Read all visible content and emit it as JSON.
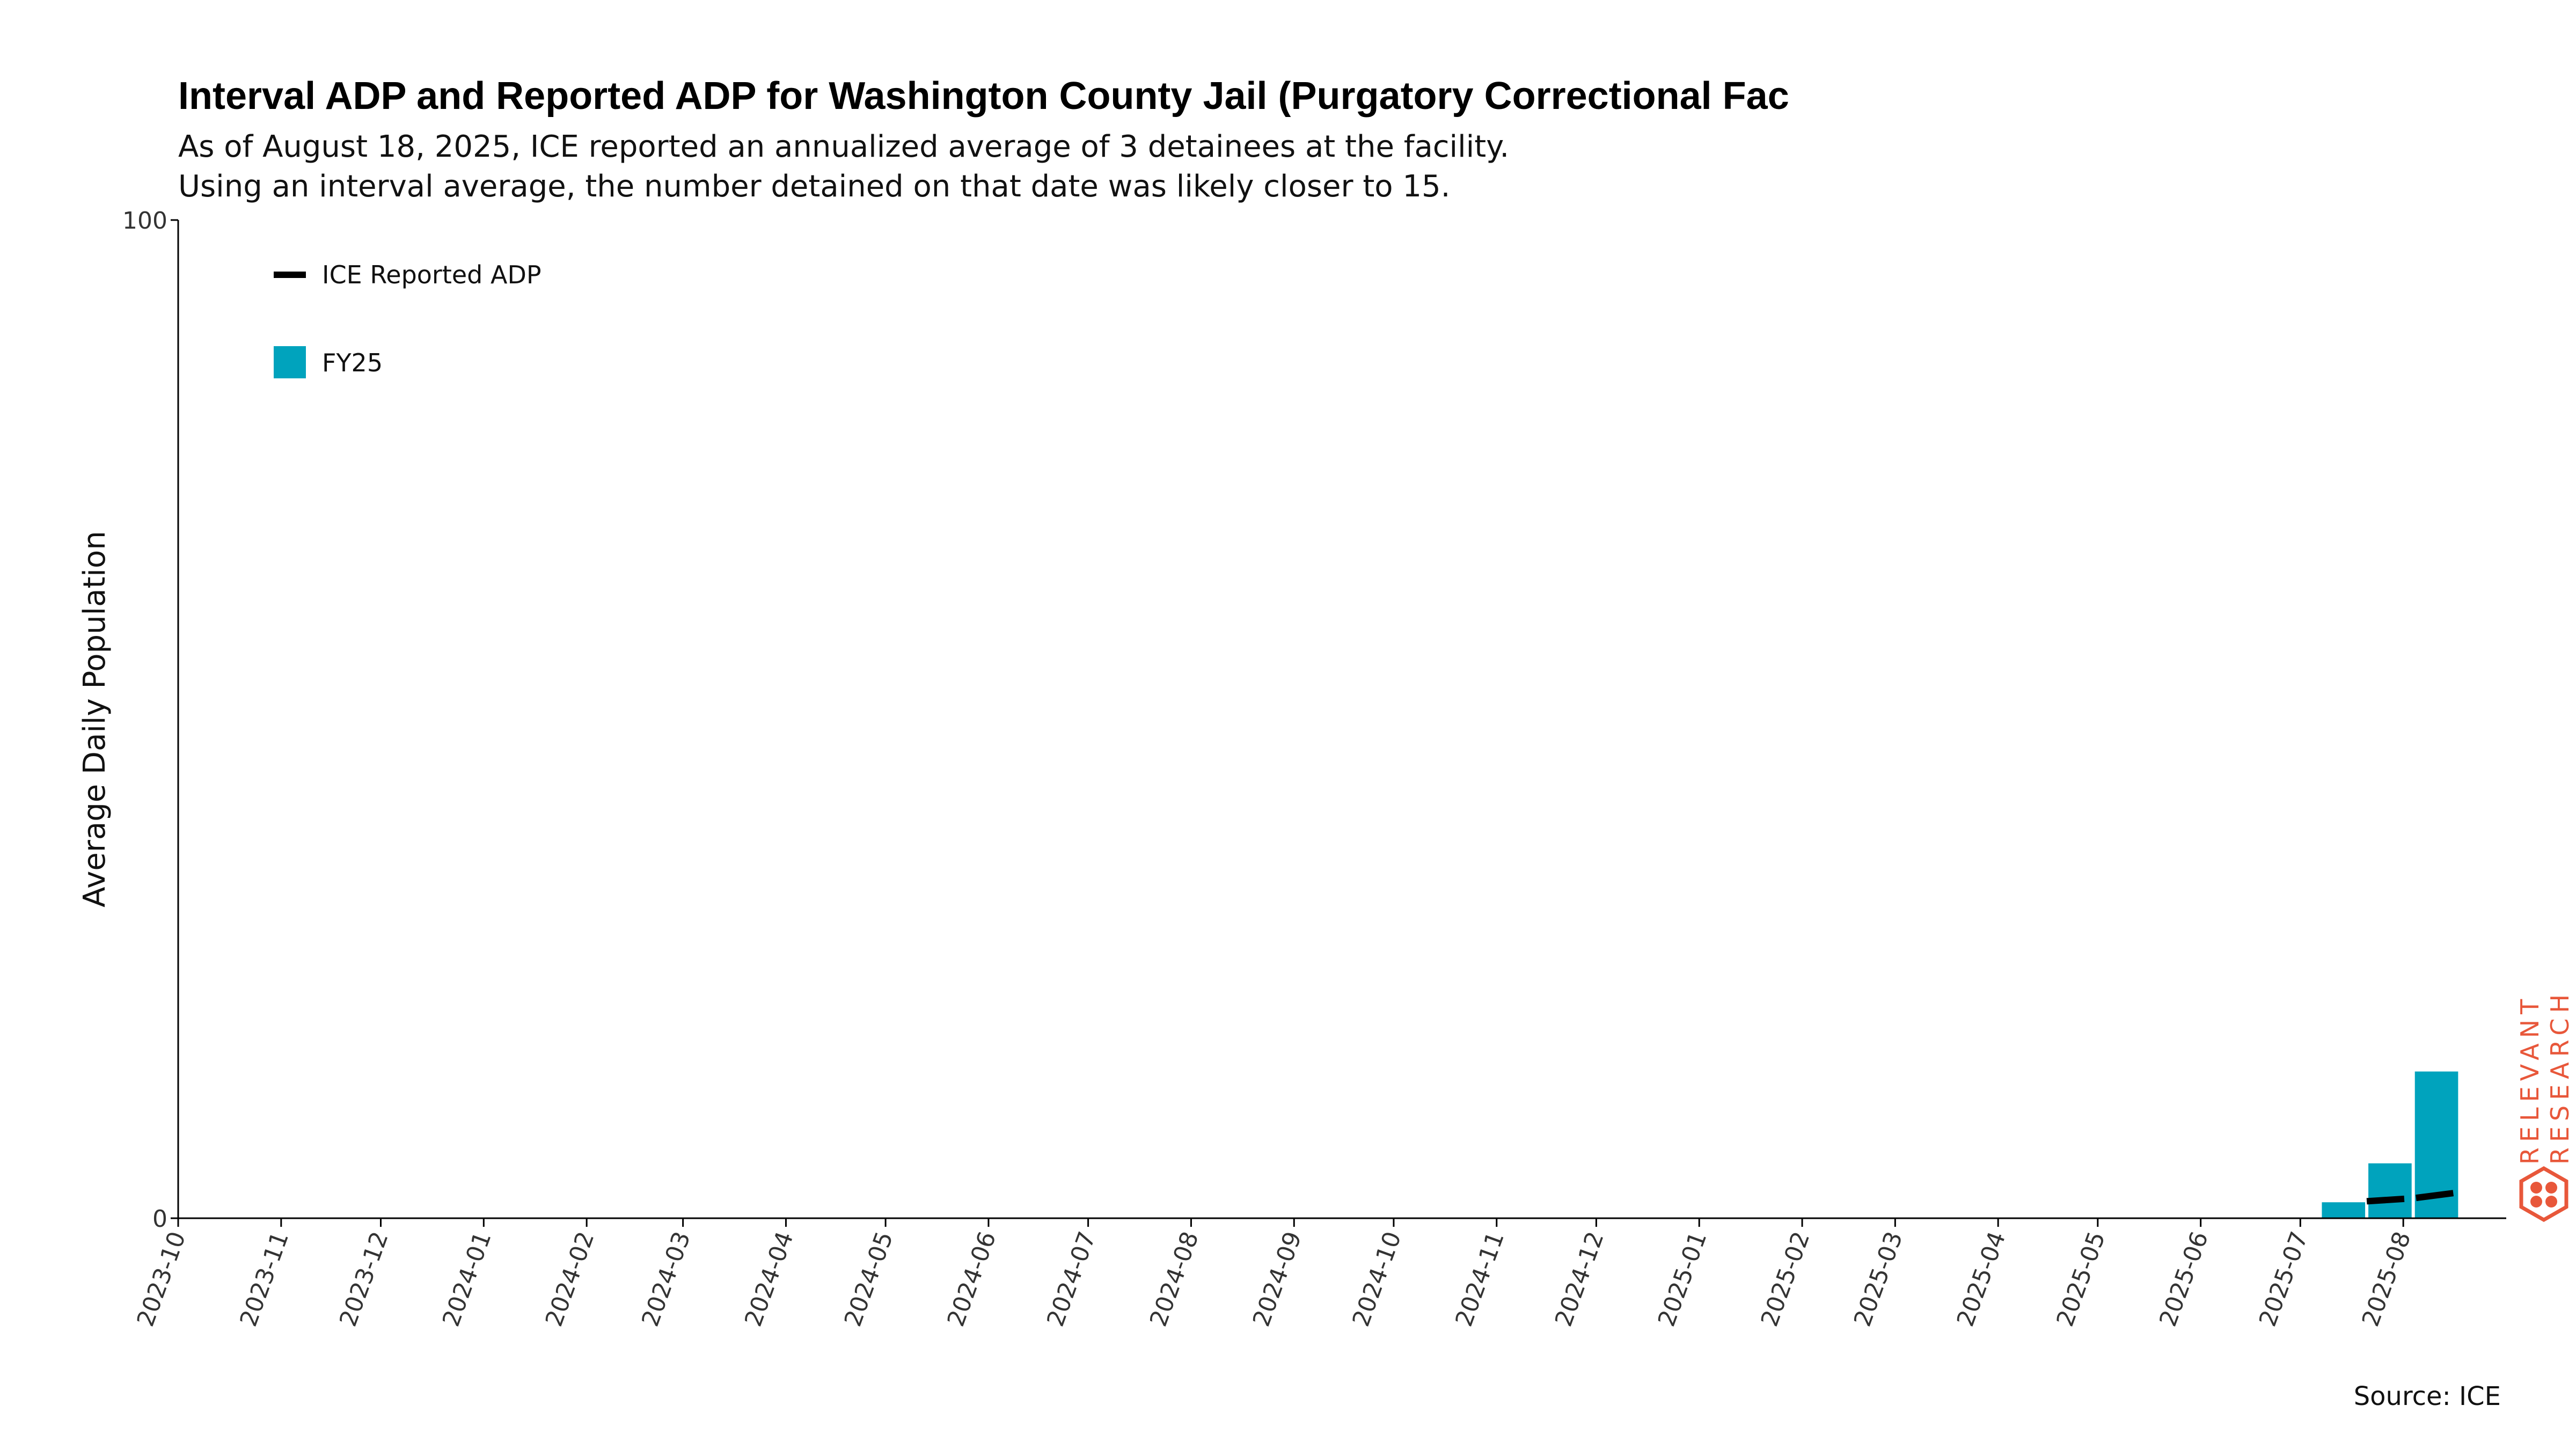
{
  "chart_data": {
    "type": "bar",
    "title": "Interval ADP and Reported ADP for Washington County Jail (Purgatory Correctional Fac",
    "subtitle_lines": [
      "As of August 18, 2025, ICE reported an annualized average of 3 detainees at the facility.",
      "Using an interval average, the number detained on that date was likely closer to 15."
    ],
    "ylabel": "Average Daily Population",
    "ylim": [
      0,
      100
    ],
    "y_ticks": [
      0,
      100
    ],
    "x_ticks": [
      "2023-10",
      "2023-11",
      "2023-12",
      "2024-01",
      "2024-02",
      "2024-03",
      "2024-04",
      "2024-05",
      "2024-06",
      "2024-07",
      "2024-08",
      "2024-09",
      "2024-10",
      "2024-11",
      "2024-12",
      "2025-01",
      "2025-02",
      "2025-03",
      "2025-04",
      "2025-05",
      "2025-06",
      "2025-07",
      "2025-08"
    ],
    "x_range": [
      "2023-10-01",
      "2025-09-01"
    ],
    "bars": {
      "name": "FY25",
      "color": "#00a3bd",
      "points": [
        {
          "start": "2025-07-07",
          "end": "2025-07-21",
          "value": 1.6
        },
        {
          "start": "2025-07-21",
          "end": "2025-08-04",
          "value": 5.5
        },
        {
          "start": "2025-08-04",
          "end": "2025-08-18",
          "value": 14.7
        }
      ]
    },
    "line": {
      "name": "ICE Reported ADP",
      "color": "#000000",
      "points": [
        {
          "date": "2025-07-21",
          "value": 1.7
        },
        {
          "date": "2025-08-04",
          "value": 2.0
        },
        {
          "date": "2025-08-18",
          "value": 2.6
        }
      ]
    },
    "legend": {
      "placement": "top-left",
      "entries": [
        "ICE Reported ADP",
        "FY25"
      ]
    },
    "grid": false,
    "source": "Source: ICE"
  },
  "logo": {
    "line1": "RELEVANT",
    "line2": "RESEARCH",
    "color": "#e8573a"
  }
}
